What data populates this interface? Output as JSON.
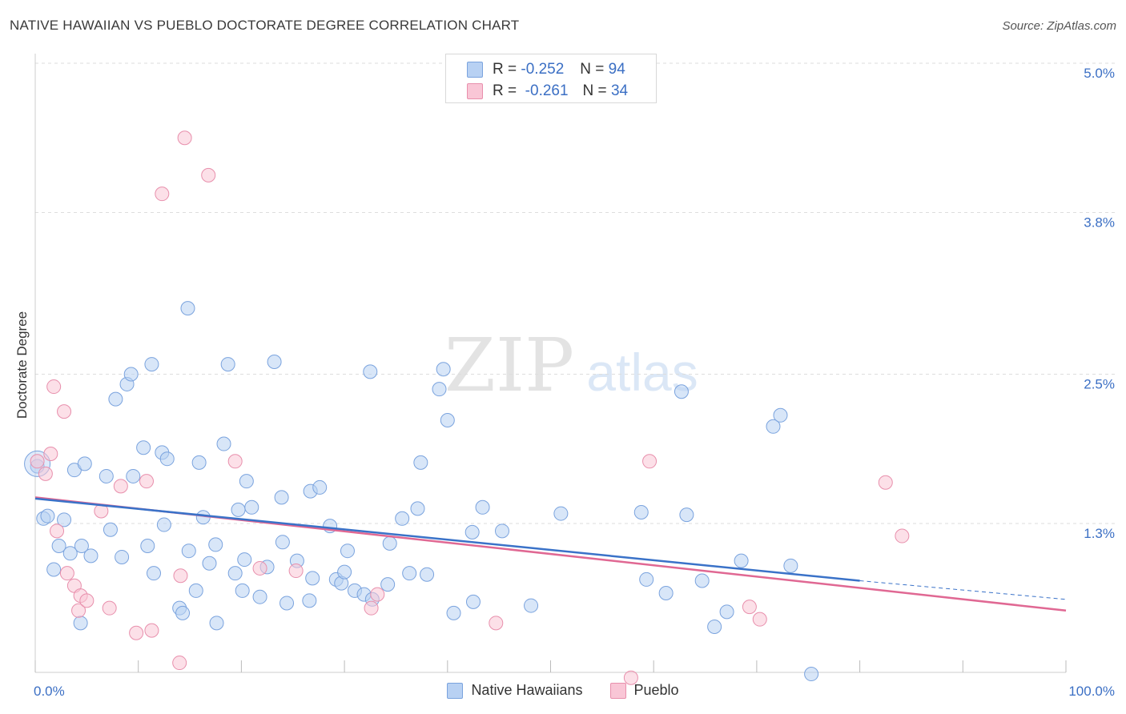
{
  "title": "NATIVE HAWAIIAN VS PUEBLO DOCTORATE DEGREE CORRELATION CHART",
  "source": "Source: ZipAtlas.com",
  "watermark_left": "ZIP",
  "watermark_right": "atlas",
  "legend_top": {
    "rows": [
      {
        "r_label": "R =",
        "r_value": "-0.252",
        "n_label": "N =",
        "n_value": "94"
      },
      {
        "r_label": "R =",
        "r_value": "-0.261",
        "n_label": "N =",
        "n_value": "34"
      }
    ]
  },
  "colors": {
    "blue_fill": "#b8d1f3",
    "blue_stroke": "#7aa3de",
    "blue_line": "#3a72c8",
    "pink_fill": "#f9c6d6",
    "pink_stroke": "#e88fac",
    "pink_line": "#e06893",
    "tick_label": "#3b6fc4",
    "grid": "#dddddd"
  },
  "chart_data": {
    "type": "scatter",
    "title": "NATIVE HAWAIIAN VS PUEBLO DOCTORATE DEGREE CORRELATION CHART",
    "xlabel": "",
    "ylabel": "Doctorate Degree",
    "xlim": [
      0,
      100
    ],
    "ylim": [
      0,
      5.2
    ],
    "x_tick_labels": [
      "0.0%",
      "100.0%"
    ],
    "y_ticks": [
      {
        "value": 1.3,
        "label": "1.3%"
      },
      {
        "value": 2.5,
        "label": "2.5%"
      },
      {
        "value": 3.8,
        "label": "3.8%"
      },
      {
        "value": 5.0,
        "label": "5.0%"
      }
    ],
    "grid": "horizontal dashed",
    "legend_placement": "bottom-center",
    "series": [
      {
        "name": "Native Hawaiians",
        "r": -0.252,
        "n": 94,
        "trend": {
          "x0": 0,
          "y0": 1.5,
          "x1": 80,
          "y1": 0.84,
          "dashed_to_x": 100,
          "dashed_to_y": 0.69
        },
        "points": [
          [
            0.2,
            1.76
          ],
          [
            0.8,
            1.34
          ],
          [
            1.2,
            1.36
          ],
          [
            1.8,
            0.93
          ],
          [
            2.3,
            1.12
          ],
          [
            2.8,
            1.33
          ],
          [
            3.4,
            1.06
          ],
          [
            3.8,
            1.73
          ],
          [
            4.4,
            0.5
          ],
          [
            4.5,
            1.12
          ],
          [
            4.8,
            1.78
          ],
          [
            5.4,
            1.04
          ],
          [
            6.9,
            1.68
          ],
          [
            7.3,
            1.25
          ],
          [
            7.8,
            2.3
          ],
          [
            8.4,
            1.03
          ],
          [
            8.9,
            2.42
          ],
          [
            9.3,
            2.5
          ],
          [
            9.5,
            1.68
          ],
          [
            10.5,
            1.91
          ],
          [
            10.9,
            1.12
          ],
          [
            11.3,
            2.58
          ],
          [
            11.5,
            0.9
          ],
          [
            12.3,
            1.87
          ],
          [
            12.5,
            1.29
          ],
          [
            12.8,
            1.82
          ],
          [
            14.0,
            0.62
          ],
          [
            14.3,
            0.58
          ],
          [
            14.8,
            3.03
          ],
          [
            14.9,
            1.08
          ],
          [
            15.6,
            0.76
          ],
          [
            15.9,
            1.79
          ],
          [
            16.3,
            1.35
          ],
          [
            16.9,
            0.98
          ],
          [
            17.5,
            1.13
          ],
          [
            17.6,
            0.5
          ],
          [
            18.3,
            1.94
          ],
          [
            18.7,
            2.58
          ],
          [
            19.4,
            0.9
          ],
          [
            19.7,
            1.41
          ],
          [
            20.1,
            0.76
          ],
          [
            20.3,
            1.01
          ],
          [
            20.5,
            1.64
          ],
          [
            21.0,
            1.43
          ],
          [
            21.8,
            0.71
          ],
          [
            22.5,
            0.95
          ],
          [
            23.2,
            2.6
          ],
          [
            23.9,
            1.51
          ],
          [
            24.0,
            1.15
          ],
          [
            24.4,
            0.66
          ],
          [
            25.4,
            1.0
          ],
          [
            26.7,
            1.56
          ],
          [
            26.9,
            0.86
          ],
          [
            26.6,
            0.68
          ],
          [
            27.6,
            1.59
          ],
          [
            28.6,
            1.28
          ],
          [
            29.2,
            0.85
          ],
          [
            29.7,
            0.82
          ],
          [
            30.0,
            0.91
          ],
          [
            30.3,
            1.08
          ],
          [
            31.0,
            0.76
          ],
          [
            31.9,
            0.73
          ],
          [
            32.5,
            2.52
          ],
          [
            32.7,
            0.69
          ],
          [
            34.2,
            0.81
          ],
          [
            34.4,
            1.14
          ],
          [
            35.6,
            1.34
          ],
          [
            36.3,
            0.9
          ],
          [
            37.1,
            1.42
          ],
          [
            37.4,
            1.79
          ],
          [
            38.0,
            0.89
          ],
          [
            39.2,
            2.38
          ],
          [
            39.6,
            2.54
          ],
          [
            40.0,
            2.13
          ],
          [
            40.6,
            0.58
          ],
          [
            42.4,
            1.23
          ],
          [
            42.5,
            0.67
          ],
          [
            43.4,
            1.43
          ],
          [
            45.3,
            1.24
          ],
          [
            48.1,
            0.64
          ],
          [
            51.0,
            1.38
          ],
          [
            58.8,
            1.39
          ],
          [
            59.3,
            0.85
          ],
          [
            61.2,
            0.74
          ],
          [
            62.7,
            2.36
          ],
          [
            63.2,
            1.37
          ],
          [
            64.7,
            0.84
          ],
          [
            65.9,
            0.47
          ],
          [
            67.1,
            0.59
          ],
          [
            68.5,
            1.0
          ],
          [
            71.6,
            2.08
          ],
          [
            72.3,
            2.17
          ],
          [
            73.3,
            0.96
          ],
          [
            75.3,
            0.09
          ]
        ]
      },
      {
        "name": "Pueblo",
        "r": -0.261,
        "n": 34,
        "trend": {
          "x0": 0,
          "y0": 1.51,
          "x1": 100,
          "y1": 0.6
        },
        "points": [
          [
            0.2,
            1.8
          ],
          [
            1.0,
            1.7
          ],
          [
            1.5,
            1.86
          ],
          [
            1.8,
            2.4
          ],
          [
            2.1,
            1.24
          ],
          [
            2.8,
            2.2
          ],
          [
            3.1,
            0.9
          ],
          [
            3.8,
            0.8
          ],
          [
            4.2,
            0.6
          ],
          [
            4.4,
            0.72
          ],
          [
            5.0,
            0.68
          ],
          [
            6.4,
            1.4
          ],
          [
            7.2,
            0.62
          ],
          [
            8.3,
            1.6
          ],
          [
            9.8,
            0.42
          ],
          [
            10.8,
            1.64
          ],
          [
            11.3,
            0.44
          ],
          [
            12.3,
            3.95
          ],
          [
            14.0,
            0.18
          ],
          [
            14.1,
            0.88
          ],
          [
            14.5,
            4.4
          ],
          [
            16.8,
            4.1
          ],
          [
            19.4,
            1.8
          ],
          [
            21.8,
            0.94
          ],
          [
            25.3,
            0.92
          ],
          [
            32.6,
            0.62
          ],
          [
            33.2,
            0.73
          ],
          [
            44.7,
            0.5
          ],
          [
            57.8,
            0.06
          ],
          [
            59.6,
            1.8
          ],
          [
            69.3,
            0.63
          ],
          [
            70.3,
            0.53
          ],
          [
            82.5,
            1.63
          ],
          [
            84.1,
            1.2
          ]
        ]
      }
    ]
  }
}
